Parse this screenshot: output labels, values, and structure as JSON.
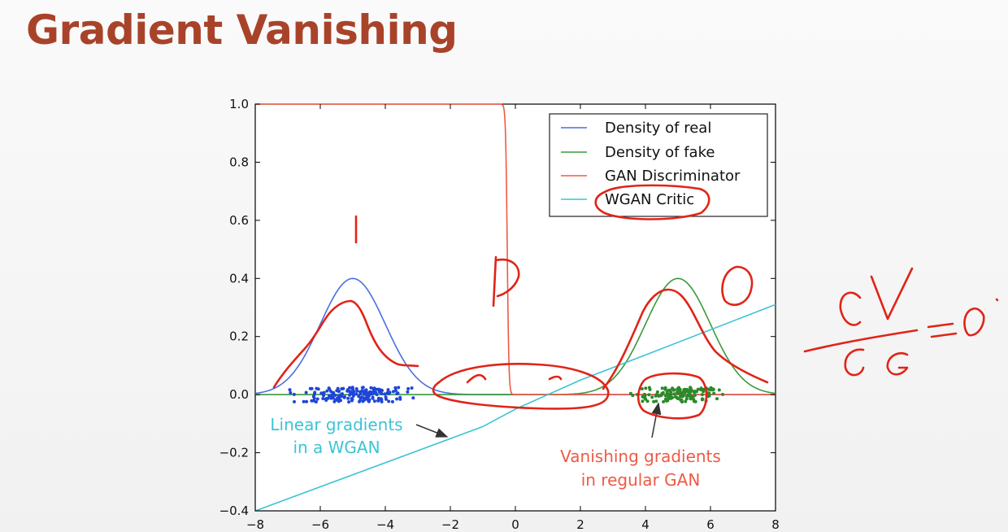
{
  "slide": {
    "title": "Gradient Vanishing"
  },
  "chart_data": {
    "type": "line",
    "xlim": [
      -8,
      8
    ],
    "ylim": [
      -0.4,
      1.0
    ],
    "xticks": [
      -8,
      -6,
      -4,
      -2,
      0,
      2,
      4,
      6,
      8
    ],
    "yticks": [
      -0.4,
      -0.2,
      0.0,
      0.2,
      0.4,
      0.6,
      0.8,
      1.0
    ],
    "xtick_labels": [
      "−8",
      "−6",
      "−4",
      "−2",
      "0",
      "2",
      "4",
      "6",
      "8"
    ],
    "ytick_labels": [
      "−0.4",
      "−0.2",
      "0.0",
      "0.2",
      "0.4",
      "0.6",
      "0.8",
      "1.0"
    ],
    "grid": false,
    "legend_position": "top-right",
    "series": [
      {
        "name": "Density of real",
        "color": "#4a6fe3",
        "curve": "gaussian",
        "mean": -5,
        "std": 1,
        "peak": 0.4
      },
      {
        "name": "Density of fake",
        "color": "#3a9a3a",
        "curve": "gaussian",
        "mean": 5,
        "std": 1,
        "peak": 0.4
      },
      {
        "name": "GAN Discriminator",
        "color": "#ee5a45",
        "curve": "step-down",
        "from_value": 1.0,
        "to_value": 0.0,
        "transition_x": 0
      },
      {
        "name": "WGAN Critic",
        "color": "#3cc4d6",
        "curve": "piecewise-linear",
        "points": [
          [
            -8,
            -0.4
          ],
          [
            -1,
            -0.11
          ],
          [
            0,
            -0.05
          ],
          [
            2,
            0.05
          ],
          [
            8,
            0.31
          ]
        ]
      }
    ],
    "scatter": [
      {
        "color": "#1f45d8",
        "x_range": [
          -7.2,
          -2.8
        ],
        "y_range": [
          -0.025,
          0.025
        ],
        "count": 180
      },
      {
        "color": "#2a8a2a",
        "x_range": [
          3.3,
          6.8
        ],
        "y_range": [
          -0.025,
          0.025
        ],
        "count": 150
      }
    ],
    "annotations": [
      {
        "text_lines": [
          "Linear gradients",
          "in a WGAN"
        ],
        "color": "#3cc4d6",
        "arrow_to": [
          -2.1,
          -0.145
        ]
      },
      {
        "text_lines": [
          "Vanishing gradients",
          "in regular GAN"
        ],
        "color": "#ee5a45",
        "arrow_to": [
          4.4,
          -0.03
        ]
      }
    ],
    "handwritten": {
      "pen_color": "#e02418",
      "labels": [
        "1",
        "D",
        "0"
      ],
      "notes": "hand-drawn pen: approximate real density copy, oval around legend WGAN Critic, oval around middle region, oval around fake samples, formula dV/dG = 0."
    }
  }
}
